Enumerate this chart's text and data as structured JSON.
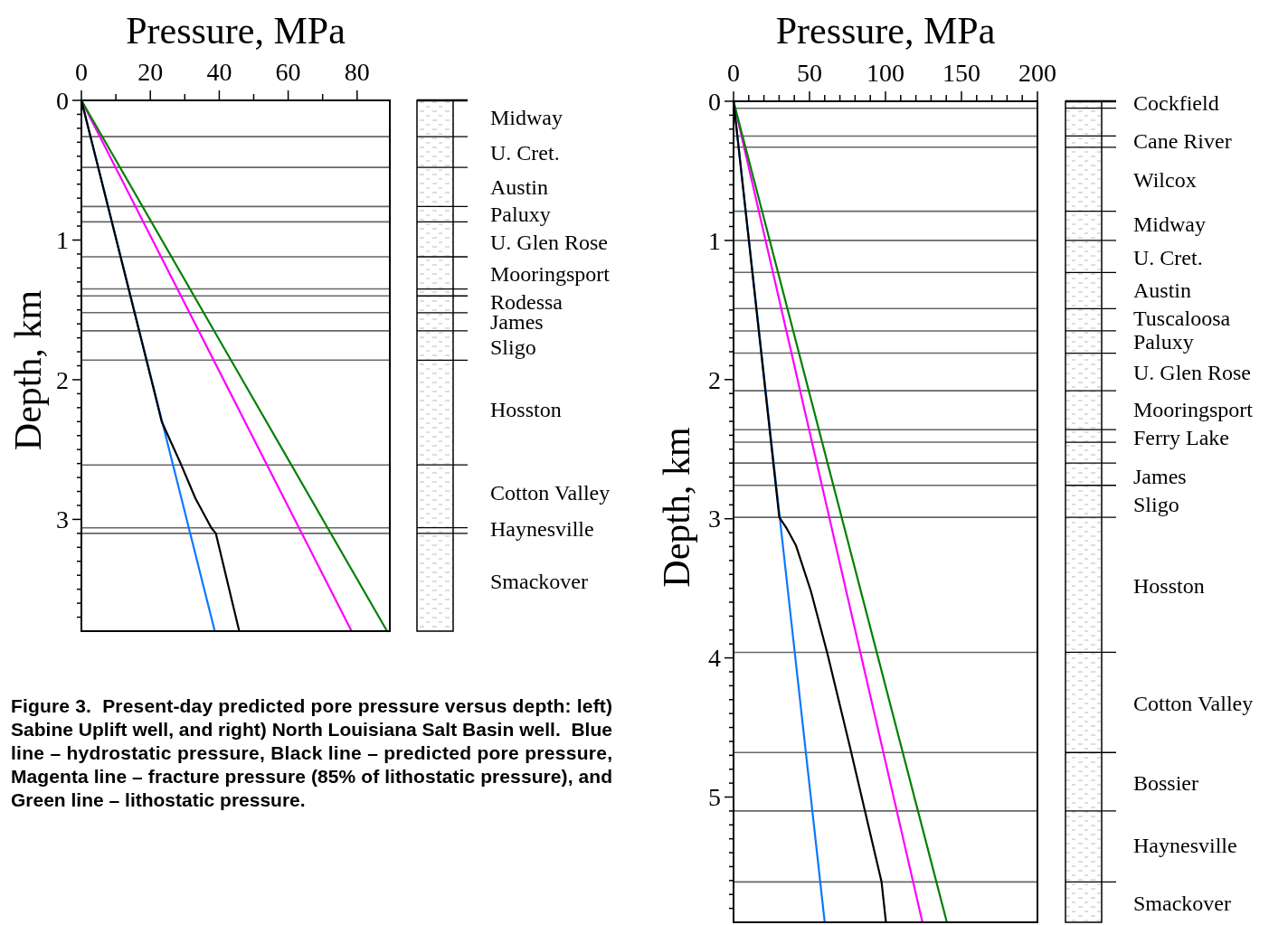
{
  "chart_data": [
    {
      "type": "line",
      "xlabel": "Pressure, MPa",
      "ylabel": "Depth, km",
      "xlim": [
        0,
        89.5
      ],
      "ylim": [
        3.8,
        0
      ],
      "xticks": [
        0,
        {
          "value": 10,
          "label": null
        },
        20,
        {
          "value": 30,
          "label": null
        },
        40,
        {
          "value": 50,
          "label": null
        },
        60,
        {
          "value": 70,
          "label": null
        },
        80
      ],
      "yticks": [
        0,
        {
          "value": 0.1,
          "label": null
        },
        {
          "value": 0.2,
          "label": null
        },
        {
          "value": 0.3,
          "label": null
        },
        {
          "value": 0.4,
          "label": null
        },
        {
          "value": 0.5,
          "label": null
        },
        {
          "value": 0.6,
          "label": null
        },
        {
          "value": 0.7,
          "label": null
        },
        {
          "value": 0.8,
          "label": null
        },
        {
          "value": 0.9,
          "label": null
        },
        1,
        {
          "value": 1.1,
          "label": null
        },
        {
          "value": 1.2,
          "label": null
        },
        {
          "value": 1.3,
          "label": null
        },
        {
          "value": 1.4,
          "label": null
        },
        {
          "value": 1.5,
          "label": null
        },
        {
          "value": 1.6,
          "label": null
        },
        {
          "value": 1.7,
          "label": null
        },
        {
          "value": 1.8,
          "label": null
        },
        {
          "value": 1.9,
          "label": null
        },
        2,
        {
          "value": 2.1,
          "label": null
        },
        {
          "value": 2.2,
          "label": null
        },
        {
          "value": 2.3,
          "label": null
        },
        {
          "value": 2.4,
          "label": null
        },
        {
          "value": 2.5,
          "label": null
        },
        {
          "value": 2.6,
          "label": null
        },
        {
          "value": 2.7,
          "label": null
        },
        {
          "value": 2.8,
          "label": null
        },
        {
          "value": 2.9,
          "label": null
        },
        3,
        {
          "value": 3.1,
          "label": null
        },
        {
          "value": 3.2,
          "label": null
        },
        {
          "value": 3.3,
          "label": null
        },
        {
          "value": 3.4,
          "label": null
        },
        {
          "value": 3.5,
          "label": null
        },
        {
          "value": 3.6,
          "label": null
        },
        {
          "value": 3.7,
          "label": null
        }
      ],
      "series": [
        {
          "color": "#0a78ff",
          "x": [
            0,
            38.7
          ],
          "values": [
            0,
            3.8
          ]
        },
        {
          "color": "#ff00ff",
          "x": [
            0,
            78.4
          ],
          "values": [
            0,
            3.8
          ]
        },
        {
          "color": "#008000",
          "x": [
            0,
            88.7
          ],
          "values": [
            0,
            3.8
          ]
        },
        {
          "color": "#000000",
          "x": [
            0,
            20.3,
            23.3,
            28.8,
            33.1,
            37.7,
            39.0,
            45.8
          ],
          "values": [
            0,
            2.0,
            2.3,
            2.6,
            2.85,
            3.06,
            3.1,
            3.8
          ]
        }
      ],
      "ref_lines": [
        {
          "axis": "y",
          "value": 0.26
        },
        {
          "axis": "y",
          "value": 0.48
        },
        {
          "axis": "y",
          "value": 0.76
        },
        {
          "axis": "y",
          "value": 0.87
        },
        {
          "axis": "y",
          "value": 1.12
        },
        {
          "axis": "y",
          "value": 1.35
        },
        {
          "axis": "y",
          "value": 1.4
        },
        {
          "axis": "y",
          "value": 1.52
        },
        {
          "axis": "y",
          "value": 1.65
        },
        {
          "axis": "y",
          "value": 1.86
        },
        {
          "axis": "y",
          "value": 2.61
        },
        {
          "axis": "y",
          "value": 3.06
        },
        {
          "axis": "y",
          "value": 3.1
        }
      ],
      "annotations": [
        "Midway",
        "U. Cret.",
        "Austin",
        "Paluxy",
        "U. Glen Rose",
        "Mooringsport",
        "Rodessa",
        "James",
        "Sligo",
        "Hosston",
        "Cotton Valley",
        "Haynesville",
        "Smackover",
        "Figure 3.  Present-day predicted pore pressure versus depth: left) Sabine Uplift well, and right) North Louisiana Salt Basin well.  Blue line – hydrostatic pressure, Black line – predicted pore pressure, Magenta line – fracture pressure (85% of lithostatic pressure), and Green line – lithostatic pressure."
      ]
    },
    {
      "type": "line",
      "xlabel": "Pressure, MPa",
      "ylabel": "Depth, km",
      "xlim": [
        0,
        200
      ],
      "ylim": [
        5.9,
        0
      ],
      "xticks": [
        0,
        {
          "value": 10,
          "label": null
        },
        {
          "value": 20,
          "label": null
        },
        {
          "value": 30,
          "label": null
        },
        {
          "value": 40,
          "label": null
        },
        50,
        {
          "value": 60,
          "label": null
        },
        {
          "value": 70,
          "label": null
        },
        {
          "value": 80,
          "label": null
        },
        {
          "value": 90,
          "label": null
        },
        100,
        {
          "value": 110,
          "label": null
        },
        {
          "value": 120,
          "label": null
        },
        {
          "value": 130,
          "label": null
        },
        {
          "value": 140,
          "label": null
        },
        150,
        {
          "value": 160,
          "label": null
        },
        {
          "value": 170,
          "label": null
        },
        {
          "value": 180,
          "label": null
        },
        {
          "value": 190,
          "label": null
        },
        200
      ],
      "yticks": [
        0,
        {
          "value": 0.1,
          "label": null
        },
        {
          "value": 0.2,
          "label": null
        },
        {
          "value": 0.3,
          "label": null
        },
        {
          "value": 0.4,
          "label": null
        },
        {
          "value": 0.5,
          "label": null
        },
        {
          "value": 0.6,
          "label": null
        },
        {
          "value": 0.7,
          "label": null
        },
        {
          "value": 0.8,
          "label": null
        },
        {
          "value": 0.9,
          "label": null
        },
        1,
        {
          "value": 1.1,
          "label": null
        },
        {
          "value": 1.2,
          "label": null
        },
        {
          "value": 1.3,
          "label": null
        },
        {
          "value": 1.4,
          "label": null
        },
        {
          "value": 1.5,
          "label": null
        },
        {
          "value": 1.6,
          "label": null
        },
        {
          "value": 1.7,
          "label": null
        },
        {
          "value": 1.8,
          "label": null
        },
        {
          "value": 1.9,
          "label": null
        },
        2,
        {
          "value": 2.1,
          "label": null
        },
        {
          "value": 2.2,
          "label": null
        },
        {
          "value": 2.3,
          "label": null
        },
        {
          "value": 2.4,
          "label": null
        },
        {
          "value": 2.5,
          "label": null
        },
        {
          "value": 2.6,
          "label": null
        },
        {
          "value": 2.7,
          "label": null
        },
        {
          "value": 2.8,
          "label": null
        },
        {
          "value": 2.9,
          "label": null
        },
        3,
        {
          "value": 3.1,
          "label": null
        },
        {
          "value": 3.2,
          "label": null
        },
        {
          "value": 3.3,
          "label": null
        },
        {
          "value": 3.4,
          "label": null
        },
        {
          "value": 3.5,
          "label": null
        },
        {
          "value": 3.6,
          "label": null
        },
        {
          "value": 3.7,
          "label": null
        },
        {
          "value": 3.8,
          "label": null
        },
        {
          "value": 3.9,
          "label": null
        },
        4,
        {
          "value": 4.1,
          "label": null
        },
        {
          "value": 4.2,
          "label": null
        },
        {
          "value": 4.3,
          "label": null
        },
        {
          "value": 4.4,
          "label": null
        },
        {
          "value": 4.5,
          "label": null
        },
        {
          "value": 4.6,
          "label": null
        },
        {
          "value": 4.7,
          "label": null
        },
        {
          "value": 4.8,
          "label": null
        },
        {
          "value": 4.9,
          "label": null
        },
        5,
        {
          "value": 5.1,
          "label": null
        },
        {
          "value": 5.2,
          "label": null
        },
        {
          "value": 5.3,
          "label": null
        },
        {
          "value": 5.4,
          "label": null
        },
        {
          "value": 5.5,
          "label": null
        },
        {
          "value": 5.6,
          "label": null
        },
        {
          "value": 5.7,
          "label": null
        },
        {
          "value": 5.8,
          "label": null
        }
      ],
      "series": [
        {
          "color": "#0a78ff",
          "x": [
            0,
            60
          ],
          "values": [
            0,
            5.9
          ]
        },
        {
          "color": "#ff00ff",
          "x": [
            0,
            124.3
          ],
          "values": [
            0,
            5.9
          ]
        },
        {
          "color": "#008000",
          "x": [
            0,
            140.4
          ],
          "values": [
            0,
            5.9
          ]
        },
        {
          "color": "#000000",
          "x": [
            0,
            30.1,
            35.0,
            41.0,
            50.9,
            61.8,
            76.6,
            86.5,
            97.4,
            100.3
          ],
          "values": [
            0,
            2.99,
            3.07,
            3.19,
            3.52,
            3.97,
            4.64,
            5.1,
            5.61,
            5.9
          ]
        }
      ],
      "ref_lines": [
        {
          "axis": "y",
          "value": 0.05
        },
        {
          "axis": "y",
          "value": 0.25
        },
        {
          "axis": "y",
          "value": 0.33
        },
        {
          "axis": "y",
          "value": 0.79
        },
        {
          "axis": "y",
          "value": 1.0
        },
        {
          "axis": "y",
          "value": 1.23
        },
        {
          "axis": "y",
          "value": 1.49
        },
        {
          "axis": "y",
          "value": 1.65
        },
        {
          "axis": "y",
          "value": 1.81
        },
        {
          "axis": "y",
          "value": 2.08
        },
        {
          "axis": "y",
          "value": 2.36
        },
        {
          "axis": "y",
          "value": 2.45
        },
        {
          "axis": "y",
          "value": 2.6
        },
        {
          "axis": "y",
          "value": 2.76
        },
        {
          "axis": "y",
          "value": 2.99
        },
        {
          "axis": "y",
          "value": 3.96
        },
        {
          "axis": "y",
          "value": 4.68
        },
        {
          "axis": "y",
          "value": 5.1
        },
        {
          "axis": "y",
          "value": 5.61
        }
      ],
      "annotations": [
        "Cockfield",
        "Cane River",
        "Wilcox",
        "Midway",
        "U. Cret.",
        "Austin",
        "Tuscaloosa",
        "Paluxy",
        "U. Glen Rose",
        "Mooringsport",
        "Ferry Lake",
        "James",
        "Sligo",
        "Hosston",
        "Cotton Valley",
        "Bossier",
        "Haynesville",
        "Smackover"
      ]
    }
  ]
}
